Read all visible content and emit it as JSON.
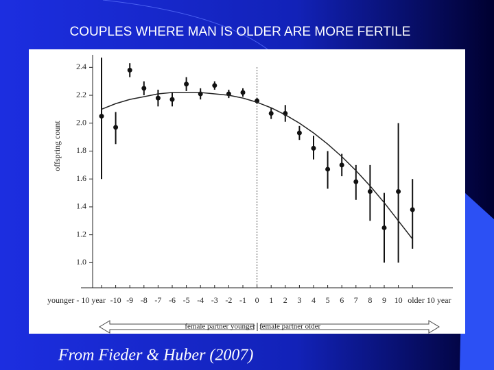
{
  "chart_data": {
    "type": "errorbar",
    "title": "COUPLES WHERE MAN IS OLDER ARE MORE FERTILE",
    "caption": "From Fieder & Huber (2007)",
    "y_label": "offspring count",
    "arrow_left_label": "female partner younger",
    "arrow_right_label": "female partner older",
    "categories": [
      "younger - 10 year",
      "-10",
      "-9",
      "-8",
      "-7",
      "-6",
      "-5",
      "-4",
      "-3",
      "-2",
      "-1",
      "0",
      "1",
      "2",
      "3",
      "4",
      "5",
      "6",
      "7",
      "8",
      "9",
      "10",
      "older 10 year"
    ],
    "series": [
      {
        "color": "#111111",
        "values": [
          2.05,
          1.97,
          2.38,
          2.25,
          2.18,
          2.17,
          2.28,
          2.21,
          2.27,
          2.21,
          2.22,
          2.16,
          2.07,
          2.07,
          1.93,
          1.82,
          1.67,
          1.7,
          1.58,
          1.51,
          1.25,
          1.51,
          1.38
        ],
        "low": [
          1.6,
          1.85,
          2.33,
          2.2,
          2.12,
          2.12,
          2.23,
          2.17,
          2.24,
          2.18,
          2.19,
          2.14,
          2.03,
          2.01,
          1.88,
          1.74,
          1.53,
          1.62,
          1.45,
          1.3,
          1.0,
          1.0,
          1.1
        ],
        "high": [
          2.47,
          2.08,
          2.43,
          2.3,
          2.24,
          2.22,
          2.33,
          2.25,
          2.3,
          2.24,
          2.25,
          2.18,
          2.11,
          2.13,
          1.98,
          1.91,
          1.8,
          1.78,
          1.7,
          1.7,
          1.5,
          2.0,
          1.6
        ]
      },
      {
        "color": "#222222",
        "type": "line",
        "values": [
          2.1,
          2.14,
          2.17,
          2.19,
          2.21,
          2.22,
          2.22,
          2.22,
          2.21,
          2.2,
          2.18,
          2.15,
          2.11,
          2.06,
          2.0,
          1.93,
          1.85,
          1.76,
          1.66,
          1.55,
          1.43,
          1.3,
          1.17
        ]
      }
    ],
    "ylim": [
      0.82,
      2.49
    ],
    "yticks": [
      {
        "value": 1.0,
        "label": "1.0"
      },
      1.2,
      1.4,
      1.6,
      1.8,
      {
        "value": 2.0,
        "label": "2.0"
      },
      2.2,
      2.4
    ],
    "reference_category": 11
  }
}
